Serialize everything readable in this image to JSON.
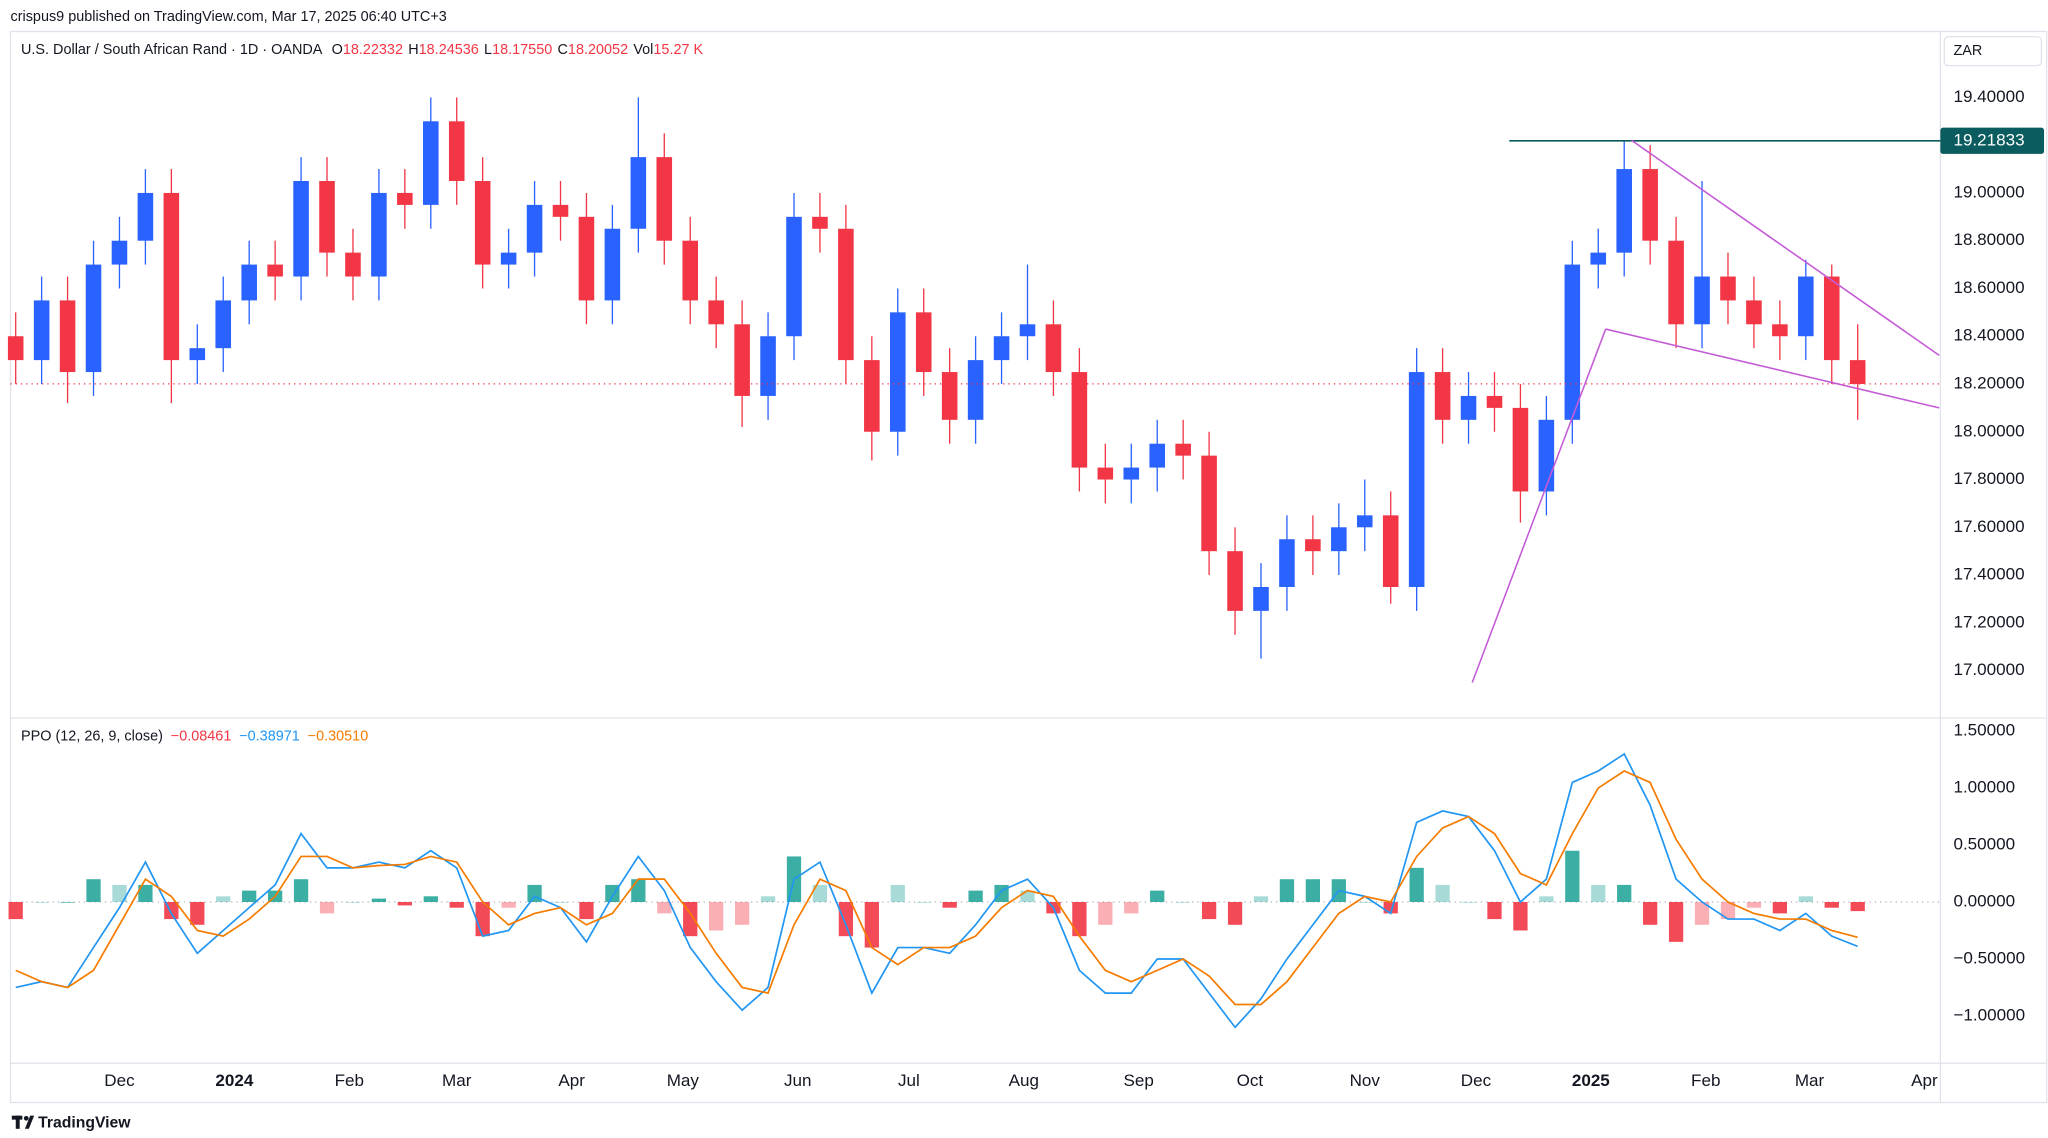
{
  "header": {
    "published": "crispus9 published on TradingView.com, Mar 17, 2025 06:40 UTC+3"
  },
  "chart_data": {
    "type": "candlestick",
    "symbol": "U.S. Dollar / South African Rand · 1D · OANDA",
    "ohlc_legend": [
      {
        "key": "O",
        "value": 18.22332,
        "label": "18.22332"
      },
      {
        "key": "H",
        "value": 18.24536,
        "label": "18.24536"
      },
      {
        "key": "L",
        "value": 18.1755,
        "label": "18.17550"
      },
      {
        "key": "C",
        "value": 18.20052,
        "label": "18.20052"
      },
      {
        "key": "Vol",
        "value": 15270,
        "label": "15.27 K"
      }
    ],
    "currency": "ZAR",
    "up_color": "#2962ff",
    "down_color": "#f23645",
    "x": [
      -28,
      -21,
      -14,
      -7,
      0,
      7,
      14,
      21,
      28,
      35,
      42,
      49,
      56,
      63,
      70,
      77,
      84,
      91,
      98,
      105,
      112,
      119,
      126,
      133,
      140,
      147,
      154,
      161,
      168,
      175,
      182,
      189,
      196,
      203,
      210,
      217,
      224,
      231,
      238,
      245,
      252,
      259,
      266,
      273,
      280,
      287,
      294,
      301,
      308,
      315,
      322,
      329,
      336,
      343,
      350,
      357,
      364,
      371,
      378,
      385,
      392,
      399,
      406,
      413,
      420,
      427,
      434,
      441,
      448,
      455,
      462,
      469
    ],
    "open": [
      18.4,
      18.3,
      18.55,
      18.25,
      18.7,
      18.8,
      19.0,
      18.3,
      18.35,
      18.55,
      18.7,
      18.65,
      19.05,
      18.75,
      18.65,
      19.0,
      18.95,
      19.3,
      19.05,
      18.7,
      18.75,
      18.95,
      18.9,
      18.55,
      18.85,
      19.15,
      18.8,
      18.55,
      18.45,
      18.15,
      18.4,
      18.9,
      18.85,
      18.3,
      18.0,
      18.5,
      18.25,
      18.05,
      18.3,
      18.4,
      18.45,
      18.25,
      17.85,
      17.8,
      17.85,
      17.95,
      17.9,
      17.5,
      17.25,
      17.35,
      17.55,
      17.5,
      17.6,
      17.65,
      17.35,
      18.25,
      18.05,
      18.15,
      18.1,
      17.75,
      18.05,
      18.7,
      18.75,
      19.1,
      18.8,
      18.45,
      18.65,
      18.55,
      18.45,
      18.4,
      18.65,
      18.3
    ],
    "high": [
      18.5,
      18.65,
      18.65,
      18.8,
      18.9,
      19.1,
      19.1,
      18.45,
      18.65,
      18.8,
      18.8,
      19.15,
      19.15,
      18.85,
      19.1,
      19.1,
      19.4,
      19.4,
      19.15,
      18.85,
      19.05,
      19.05,
      19.0,
      18.95,
      19.4,
      19.25,
      18.9,
      18.65,
      18.55,
      18.5,
      19.0,
      19.0,
      18.95,
      18.4,
      18.6,
      18.6,
      18.35,
      18.4,
      18.5,
      18.7,
      18.55,
      18.35,
      17.95,
      17.95,
      18.05,
      18.05,
      18.0,
      17.6,
      17.45,
      17.65,
      17.65,
      17.7,
      17.8,
      17.75,
      18.35,
      18.35,
      18.25,
      18.25,
      18.2,
      18.15,
      18.8,
      18.85,
      19.22,
      19.2,
      18.9,
      19.05,
      18.75,
      18.65,
      18.55,
      18.72,
      18.7,
      18.45
    ],
    "low": [
      18.2,
      18.2,
      18.12,
      18.15,
      18.6,
      18.7,
      18.12,
      18.2,
      18.25,
      18.45,
      18.55,
      18.55,
      18.65,
      18.55,
      18.55,
      18.85,
      18.85,
      18.95,
      18.6,
      18.6,
      18.65,
      18.8,
      18.45,
      18.45,
      18.75,
      18.7,
      18.45,
      18.35,
      18.02,
      18.05,
      18.3,
      18.75,
      18.2,
      17.88,
      17.9,
      18.15,
      17.95,
      17.95,
      18.2,
      18.3,
      18.15,
      17.75,
      17.7,
      17.7,
      17.75,
      17.8,
      17.4,
      17.15,
      17.05,
      17.25,
      17.4,
      17.4,
      17.5,
      17.28,
      17.25,
      17.95,
      17.95,
      18.0,
      17.62,
      17.65,
      17.95,
      18.6,
      18.65,
      18.7,
      18.35,
      18.35,
      18.45,
      18.35,
      18.3,
      18.3,
      18.2,
      18.05
    ],
    "close": [
      18.3,
      18.55,
      18.25,
      18.7,
      18.8,
      19.0,
      18.3,
      18.35,
      18.55,
      18.7,
      18.65,
      19.05,
      18.75,
      18.65,
      19.0,
      18.95,
      19.3,
      19.05,
      18.7,
      18.75,
      18.95,
      18.9,
      18.55,
      18.85,
      19.15,
      18.8,
      18.55,
      18.45,
      18.15,
      18.4,
      18.9,
      18.85,
      18.3,
      18.0,
      18.5,
      18.25,
      18.05,
      18.3,
      18.4,
      18.45,
      18.25,
      17.85,
      17.8,
      17.85,
      17.95,
      17.9,
      17.5,
      17.25,
      17.35,
      17.55,
      17.5,
      17.6,
      17.65,
      17.35,
      18.25,
      18.05,
      18.15,
      18.1,
      17.75,
      18.05,
      18.7,
      18.75,
      19.1,
      18.8,
      18.45,
      18.65,
      18.55,
      18.45,
      18.4,
      18.65,
      18.3,
      18.2
    ],
    "xlim": [
      -29.4,
      491.3
    ],
    "xticks": [
      {
        "value": 0,
        "label": "Dec"
      },
      {
        "value": 31,
        "label": "2024"
      },
      {
        "value": 62,
        "label": "Feb"
      },
      {
        "value": 91,
        "label": "Mar"
      },
      {
        "value": 122,
        "label": "Apr"
      },
      {
        "value": 152,
        "label": "May"
      },
      {
        "value": 183,
        "label": "Jun"
      },
      {
        "value": 213,
        "label": "Jul"
      },
      {
        "value": 244,
        "label": "Aug"
      },
      {
        "value": 275,
        "label": "Sep"
      },
      {
        "value": 305,
        "label": "Oct"
      },
      {
        "value": 336,
        "label": "Nov"
      },
      {
        "value": 366,
        "label": "Dec"
      },
      {
        "value": 397,
        "label": "2025"
      },
      {
        "value": 428,
        "label": "Feb"
      },
      {
        "value": 456,
        "label": "Mar"
      },
      {
        "value": 487,
        "label": "Apr"
      }
    ],
    "ylim": [
      16.807,
      19.676
    ],
    "yticks": [
      {
        "value": 19.4,
        "label": "19.40000"
      },
      {
        "value": 19.0,
        "label": "19.00000"
      },
      {
        "value": 18.8,
        "label": "18.80000"
      },
      {
        "value": 18.6,
        "label": "18.60000"
      },
      {
        "value": 18.4,
        "label": "18.40000"
      },
      {
        "value": 18.2,
        "label": "18.20000"
      },
      {
        "value": 18.0,
        "label": "18.00000"
      },
      {
        "value": 17.8,
        "label": "17.80000"
      },
      {
        "value": 17.6,
        "label": "17.60000"
      },
      {
        "value": 17.4,
        "label": "17.40000"
      },
      {
        "value": 17.2,
        "label": "17.20000"
      },
      {
        "value": 17.0,
        "label": "17.00000"
      }
    ],
    "grid": false,
    "price_line": {
      "value": 19.21833,
      "x_start": 375,
      "color": "#0b5c5e"
    },
    "trendline_color": "#c45bd6",
    "trendlines": [
      {
        "x": [
          408,
          491
        ],
        "y": [
          19.22,
          18.32
        ]
      },
      {
        "x": [
          401,
          491
        ],
        "y": [
          18.43,
          18.1
        ]
      },
      {
        "x": [
          365,
          401
        ],
        "y": [
          16.95,
          18.43
        ]
      }
    ],
    "indicator": {
      "type": "ppo",
      "title": "PPO (12, 26, 9, close)",
      "legend": [
        {
          "value": -0.08461,
          "label": "−0.08461",
          "color": "#f23645"
        },
        {
          "value": -0.38971,
          "label": "−0.38971",
          "color": "#2196f3"
        },
        {
          "value": -0.3051,
          "label": "−0.30510",
          "color": "#f57c00"
        }
      ],
      "ylim": [
        -1.415,
        1.604
      ],
      "yticks": [
        {
          "value": 1.5,
          "label": "1.50000"
        },
        {
          "value": 1.0,
          "label": "1.00000"
        },
        {
          "value": 0.5,
          "label": "0.50000"
        },
        {
          "value": 0,
          "label": "0.00000"
        },
        {
          "value": -0.5,
          "label": "−0.50000"
        },
        {
          "value": -1.0,
          "label": "−1.00000"
        }
      ],
      "histogram": {
        "up_color": "#26a69a",
        "down_color": "#f23645",
        "values": [
          -0.15,
          0.0,
          0.0,
          0.2,
          0.15,
          0.15,
          -0.15,
          -0.2,
          0.05,
          0.1,
          0.1,
          0.2,
          -0.1,
          0.0,
          0.03,
          -0.03,
          0.05,
          -0.05,
          -0.3,
          -0.05,
          0.15,
          0.0,
          -0.15,
          0.15,
          0.2,
          -0.1,
          -0.3,
          -0.25,
          -0.2,
          0.05,
          0.4,
          0.15,
          -0.3,
          -0.4,
          0.15,
          0.0,
          -0.05,
          0.1,
          0.15,
          0.1,
          -0.1,
          -0.3,
          -0.2,
          -0.1,
          0.1,
          0.0,
          -0.15,
          -0.2,
          0.05,
          0.2,
          0.2,
          0.2,
          0.0,
          -0.1,
          0.3,
          0.15,
          0.0,
          -0.15,
          -0.25,
          0.05,
          0.45,
          0.15,
          0.15,
          -0.2,
          -0.35,
          -0.2,
          -0.15,
          -0.05,
          -0.1,
          0.05,
          -0.05,
          -0.08
        ]
      },
      "series": [
        {
          "color": "#2196f3",
          "values": [
            -0.75,
            -0.7,
            -0.75,
            -0.4,
            -0.05,
            0.35,
            -0.1,
            -0.45,
            -0.25,
            -0.05,
            0.15,
            0.6,
            0.3,
            0.3,
            0.35,
            0.3,
            0.45,
            0.3,
            -0.3,
            -0.25,
            0.05,
            -0.05,
            -0.35,
            0.05,
            0.4,
            0.1,
            -0.4,
            -0.7,
            -0.95,
            -0.75,
            0.2,
            0.35,
            -0.2,
            -0.8,
            -0.4,
            -0.4,
            -0.45,
            -0.2,
            0.1,
            0.2,
            -0.05,
            -0.6,
            -0.8,
            -0.8,
            -0.5,
            -0.5,
            -0.8,
            -1.1,
            -0.85,
            -0.5,
            -0.2,
            0.1,
            0.05,
            -0.1,
            0.7,
            0.8,
            0.75,
            0.45,
            0.0,
            0.2,
            1.05,
            1.15,
            1.3,
            0.85,
            0.2,
            0.0,
            -0.15,
            -0.15,
            -0.25,
            -0.1,
            -0.3,
            -0.39
          ]
        },
        {
          "color": "#f57c00",
          "values": [
            -0.6,
            -0.7,
            -0.75,
            -0.6,
            -0.2,
            0.2,
            0.05,
            -0.25,
            -0.3,
            -0.15,
            0.05,
            0.4,
            0.4,
            0.3,
            0.32,
            0.33,
            0.4,
            0.35,
            0.0,
            -0.2,
            -0.1,
            -0.05,
            -0.2,
            -0.1,
            0.2,
            0.2,
            -0.1,
            -0.45,
            -0.75,
            -0.8,
            -0.2,
            0.2,
            0.1,
            -0.4,
            -0.55,
            -0.4,
            -0.4,
            -0.3,
            -0.05,
            0.1,
            0.05,
            -0.3,
            -0.6,
            -0.7,
            -0.6,
            -0.5,
            -0.65,
            -0.9,
            -0.9,
            -0.7,
            -0.4,
            -0.1,
            0.05,
            0.0,
            0.4,
            0.65,
            0.75,
            0.6,
            0.25,
            0.15,
            0.6,
            1.0,
            1.15,
            1.05,
            0.55,
            0.2,
            0.0,
            -0.1,
            -0.15,
            -0.15,
            -0.25,
            -0.31
          ]
        }
      ]
    }
  },
  "footer": {
    "brand": "TradingView"
  }
}
